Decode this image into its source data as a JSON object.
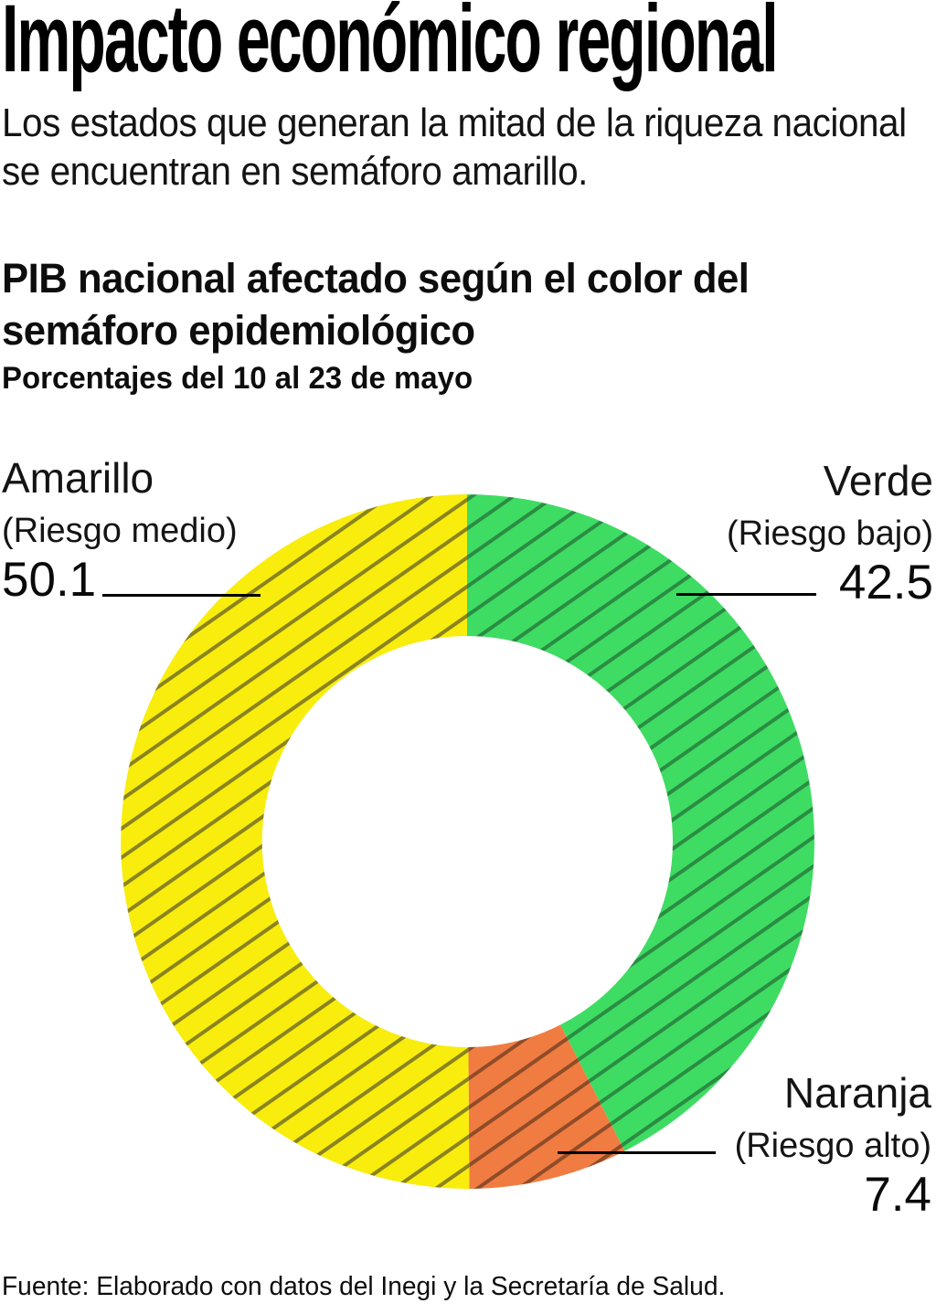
{
  "header": {
    "title": "Impacto económico regional",
    "subtitle": "Los estados que generan la mitad de la riqueza nacional se encuentran en semáforo amarillo."
  },
  "section": {
    "heading": "PIB nacional afectado según el color del semáforo epidemiológico",
    "subheading": "Porcentajes del 10 al 23 de mayo"
  },
  "chart_data": {
    "type": "pie",
    "variant": "donut",
    "title": "PIB nacional afectado según el color del semáforo epidemiológico",
    "unit": "percent of national GDP",
    "period": "10 al 23 de mayo",
    "direction": "clockwise",
    "start_angle_deg": 0,
    "hatched": true,
    "legend_position": "outside-callouts",
    "segments": [
      {
        "label": "Verde",
        "risk": "(Riesgo bajo)",
        "value": 42.5,
        "color": "#3edc63",
        "hatch_color": "#2b8c43"
      },
      {
        "label": "Naranja",
        "risk": "(Riesgo alto)",
        "value": 7.4,
        "color": "#f07c42",
        "hatch_color": "#8f4c28"
      },
      {
        "label": "Amarillo",
        "risk": "(Riesgo medio)",
        "value": 50.1,
        "color": "#f8ed0c",
        "hatch_color": "#8a831e"
      }
    ]
  },
  "footer": {
    "source": "Fuente: Elaborado con datos del Inegi y la Secretaría de Salud."
  }
}
